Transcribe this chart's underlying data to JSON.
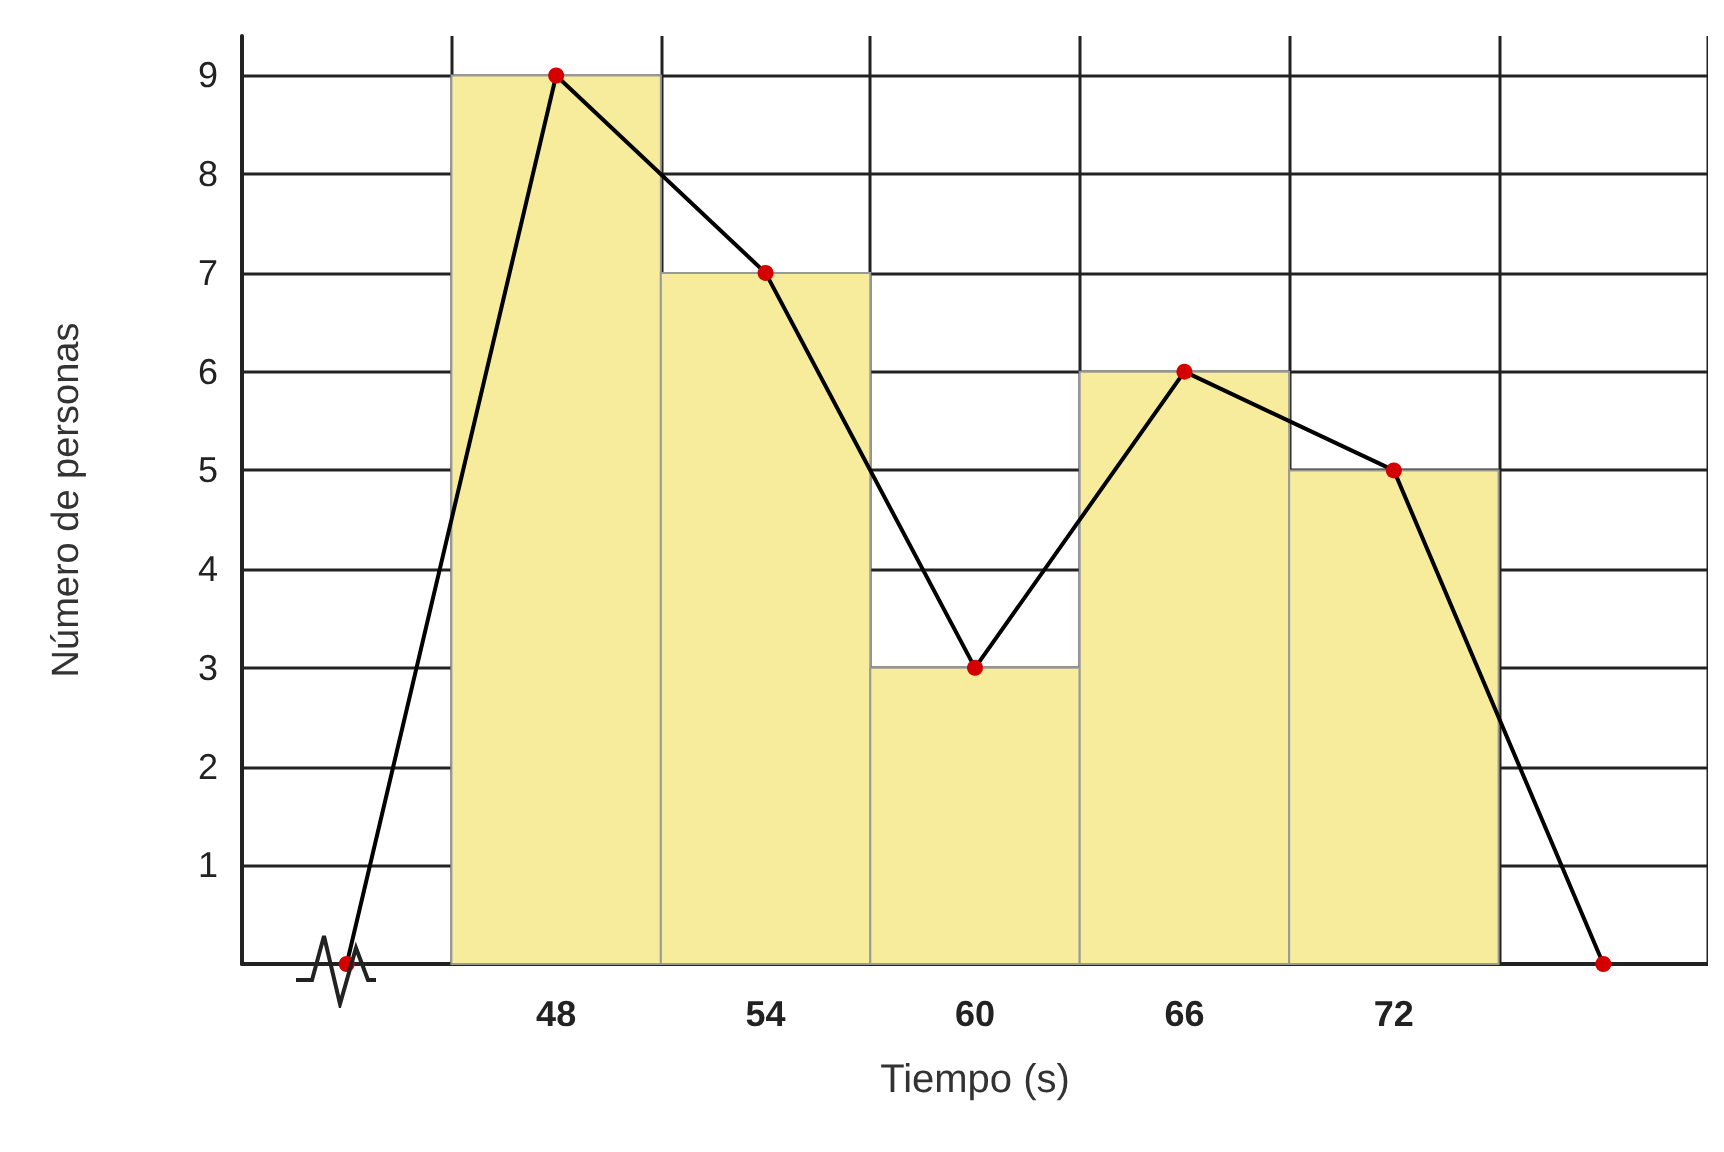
{
  "chart_data": {
    "type": "histogram",
    "xlabel": "Tiempo (s)",
    "ylabel": "Número de personas",
    "bins": [
      45,
      51,
      57,
      63,
      69,
      75
    ],
    "values": [
      9,
      7,
      3,
      6,
      5
    ],
    "color": "#f6ec9c",
    "series": [
      {
        "type": "line",
        "x": [
          42,
          48,
          54,
          60,
          66,
          72,
          78
        ],
        "values": [
          0,
          9,
          7,
          3,
          6,
          5,
          0
        ],
        "color": "#000000",
        "colors": [
          "#d40000",
          "#d40000",
          "#d40000",
          "#d40000",
          "#d40000",
          "#d40000",
          "#d40000"
        ]
      }
    ],
    "xlim": [
      39,
      81
    ],
    "xticks": [
      {
        "value": 39,
        "label": null
      },
      {
        "value": 45,
        "label": null
      },
      48,
      {
        "value": 51,
        "label": null
      },
      54,
      {
        "value": 57,
        "label": null
      },
      60,
      {
        "value": 63,
        "label": null
      },
      66,
      {
        "value": 69,
        "label": null
      },
      72,
      {
        "value": 75,
        "label": null
      },
      {
        "value": 81,
        "label": null
      }
    ],
    "ylim": [
      0,
      9.4
    ],
    "yticks": [
      {
        "value": 0,
        "label": null
      },
      1,
      2,
      3,
      4,
      5,
      6,
      7,
      8,
      9
    ],
    "grid": true,
    "marker": "circle"
  }
}
